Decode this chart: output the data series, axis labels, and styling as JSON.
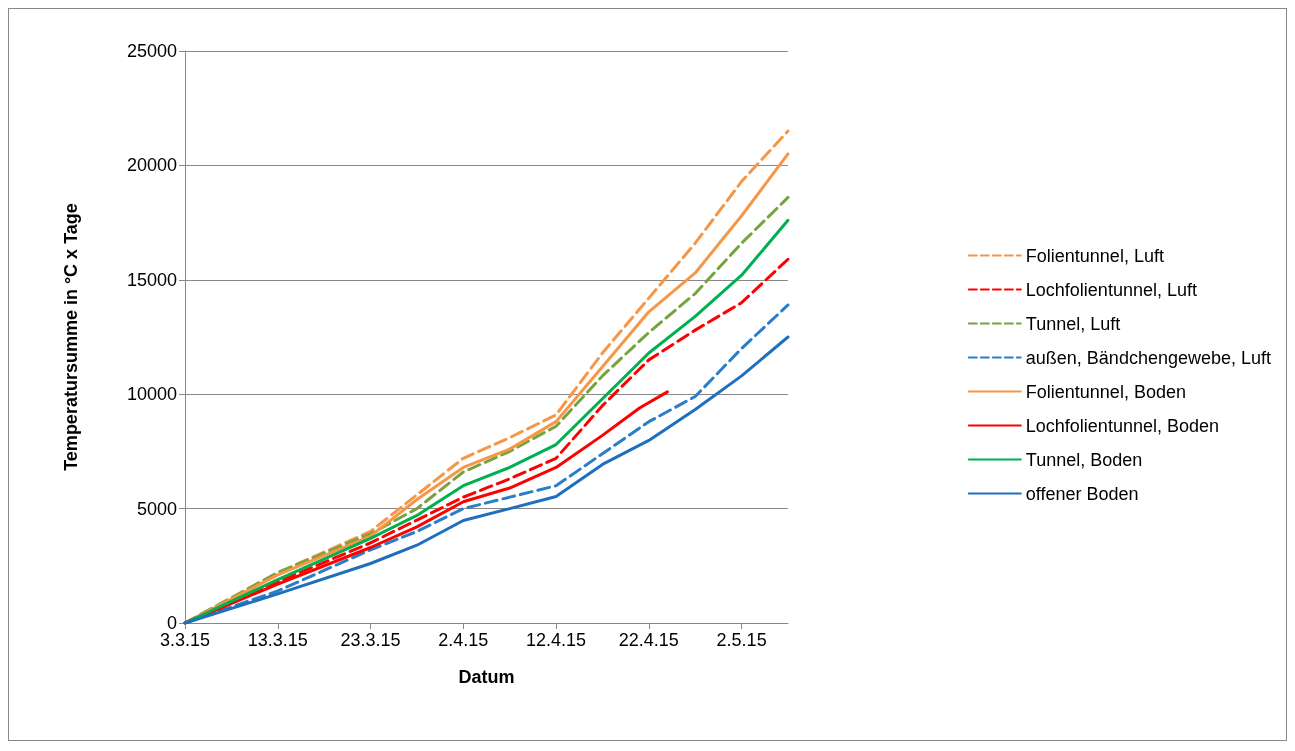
{
  "chart_data": {
    "type": "line",
    "xlabel": "Datum",
    "ylabel": "Temperatursumme in °C x Tage",
    "xlim": [
      "--03-03",
      "--05-07"
    ],
    "xticks": [
      {
        "value": "--03-03",
        "label": "3.3.15"
      },
      {
        "value": "--03-13",
        "label": "13.3.15"
      },
      {
        "value": "--03-23",
        "label": "23.3.15"
      },
      {
        "value": "--04-02",
        "label": "2.4.15"
      },
      {
        "value": "--04-12",
        "label": "12.4.15"
      },
      {
        "value": "--04-22",
        "label": "22.4.15"
      },
      {
        "value": "--05-02",
        "label": "2.5.15"
      }
    ],
    "ylim": [
      0,
      25000
    ],
    "yticks": [
      0,
      5000,
      10000,
      15000,
      20000,
      25000
    ],
    "grid": "y",
    "legend": "right",
    "marker": "none",
    "x": [
      "--03-03",
      "--03-13",
      "--03-23",
      "--03-28",
      "--04-02",
      "--04-07",
      "--04-12",
      "--04-17",
      "--04-22",
      "--04-27",
      "--05-02",
      "--05-07"
    ],
    "series": [
      {
        "name": "Folientunnel, Luft",
        "color": "#f79646",
        "line_style": "dashed",
        "values": [
          0,
          2200,
          4000,
          5600,
          7200,
          8100,
          9100,
          11800,
          14200,
          16600,
          19300,
          21500
        ]
      },
      {
        "name": "Lochfolientunnel, Luft",
        "color": "#ff0000",
        "line_style": "dashed",
        "values": [
          0,
          1800,
          3500,
          4500,
          5500,
          6300,
          7200,
          9500,
          11500,
          12800,
          14000,
          15900
        ]
      },
      {
        "name": "Tunnel, Luft",
        "color": "#77a33e",
        "line_style": "dashed",
        "values": [
          0,
          2200,
          3900,
          5000,
          6600,
          7500,
          8600,
          10800,
          12700,
          14400,
          16600,
          18600
        ]
      },
      {
        "name": "außen, Bändchengewebe, Luft",
        "color": "#2a7ec9",
        "line_style": "dashed",
        "values": [
          0,
          1400,
          3200,
          4000,
          5000,
          5500,
          6000,
          7400,
          8800,
          9900,
          12000,
          13900
        ]
      },
      {
        "name": "Folientunnel, Boden",
        "color": "#f79646",
        "line_style": "solid",
        "values": [
          0,
          2100,
          3800,
          5400,
          6800,
          7600,
          8800,
          11200,
          13600,
          15300,
          17800,
          20500
        ]
      },
      {
        "name": "Lochfolientunnel, Boden",
        "color": "#ff0000",
        "line_style": "solid",
        "x": [
          "--03-03",
          "--03-13",
          "--03-23",
          "--03-28",
          "--04-02",
          "--04-07",
          "--04-12",
          "--04-17",
          "--04-21",
          "--04-24"
        ],
        "values": [
          0,
          1700,
          3300,
          4200,
          5300,
          5900,
          6800,
          8200,
          9400,
          10100
        ]
      },
      {
        "name": "Tunnel, Boden",
        "color": "#00b050",
        "line_style": "solid",
        "values": [
          0,
          1900,
          3700,
          4700,
          6000,
          6800,
          7800,
          9800,
          11800,
          13400,
          15200,
          17600
        ]
      },
      {
        "name": "offener Boden",
        "color": "#1f6fbf",
        "line_style": "solid",
        "values": [
          0,
          1270,
          2600,
          3400,
          4480,
          5000,
          5530,
          6930,
          7980,
          9330,
          10800,
          12500
        ]
      }
    ]
  }
}
